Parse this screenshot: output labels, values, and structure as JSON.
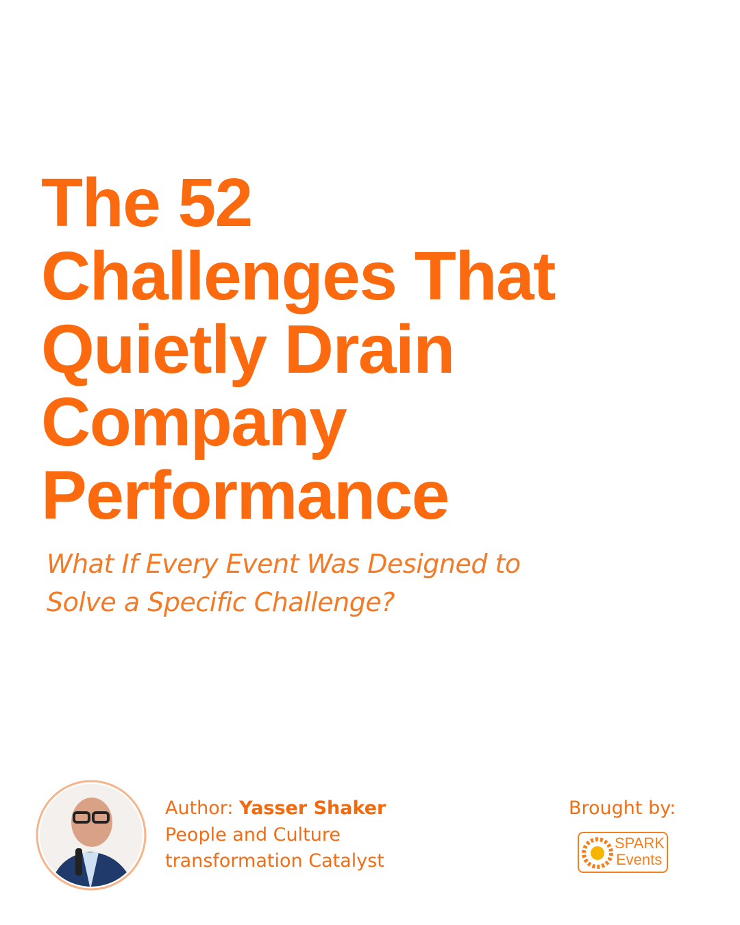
{
  "header": {
    "title_lines": [
      "The 52",
      "Challenges That",
      "Quietly Drain",
      "Company",
      "Performance"
    ],
    "subtitle_lines": [
      "What If Every Event Was Designed to",
      "Solve a Specific Challenge?"
    ]
  },
  "author": {
    "label": "Author:",
    "name": "Yasser Shaker",
    "role_lines": [
      "People and Culture",
      "transformation Catalyst"
    ]
  },
  "sponsor": {
    "label": "Brought by:",
    "logo_top": "SPARK",
    "logo_bottom": "Events"
  }
}
